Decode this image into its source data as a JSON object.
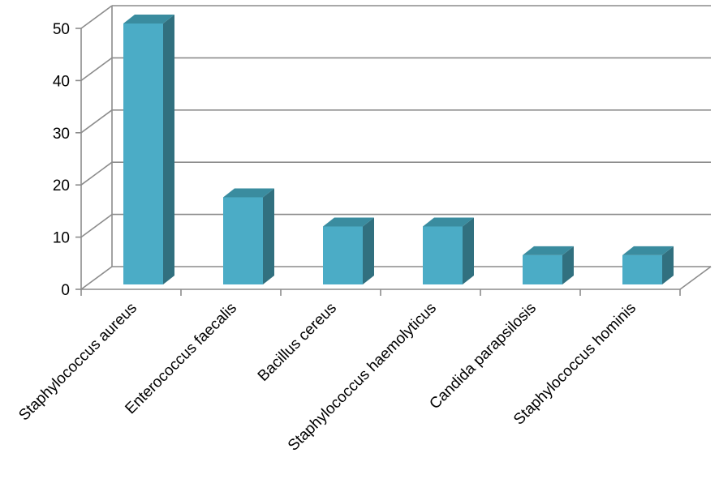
{
  "chart_data": {
    "type": "bar",
    "style": "3d-column",
    "title": "",
    "xlabel": "",
    "ylabel": "",
    "categories": [
      "Staphylococcus aureus",
      "Enterococcus faecalis",
      "Bacillus cereus",
      "Staphylococcus haemolyticus",
      "Candida parapsilosis",
      "Staphylococcus hominis"
    ],
    "values": [
      50,
      16.7,
      11.1,
      11.1,
      5.6,
      5.6
    ],
    "ylim": [
      0,
      50
    ],
    "yticks": [
      "0",
      "10",
      "20",
      "30",
      "40",
      "50"
    ],
    "grid": true,
    "legend": "none",
    "colors": {
      "bar_front": "#4BACC6",
      "bar_side": "#31707F",
      "bar_top": "#3A8C9F",
      "gridline": "#8C8C8C",
      "axis": "#8C8C8C",
      "text": "#000000"
    }
  }
}
